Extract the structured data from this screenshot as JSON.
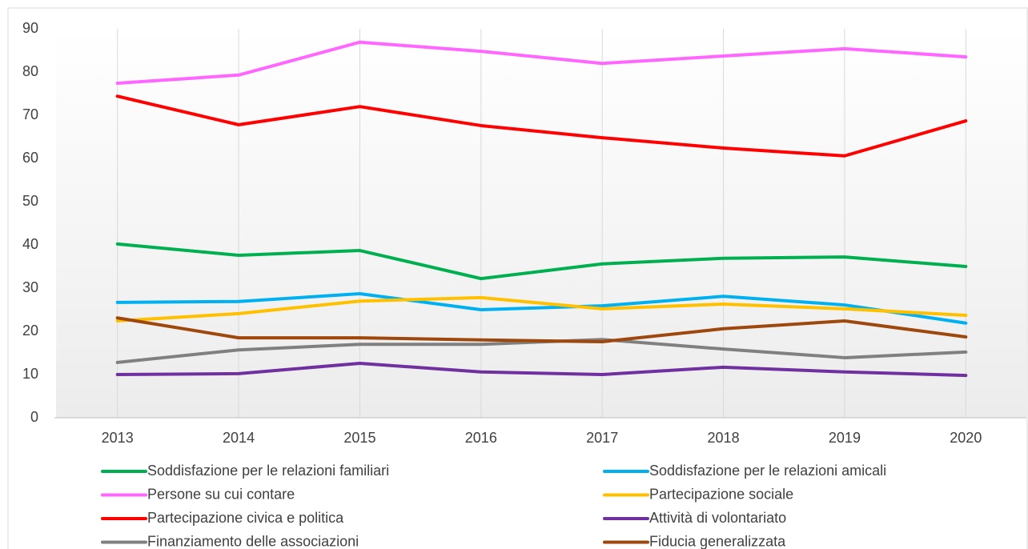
{
  "chart_data": {
    "type": "line",
    "categories": [
      "2013",
      "2014",
      "2015",
      "2016",
      "2017",
      "2018",
      "2019",
      "2020"
    ],
    "series": [
      {
        "name": "Soddisfazione per le relazioni familiari",
        "color": "#00b050",
        "values": [
          40.2,
          37.6,
          38.7,
          32.2,
          35.6,
          36.9,
          37.2,
          35.0
        ]
      },
      {
        "name": "Soddisfazione per le relazioni amicali",
        "color": "#00b0f0",
        "values": [
          26.7,
          26.9,
          28.7,
          25.0,
          25.9,
          28.1,
          26.1,
          21.9
        ]
      },
      {
        "name": "Persone su cui contare",
        "color": "#ff66ff",
        "values": [
          77.4,
          79.3,
          86.9,
          84.8,
          82.0,
          83.7,
          85.4,
          83.5
        ]
      },
      {
        "name": "Partecipazione sociale",
        "color": "#ffc000",
        "values": [
          22.4,
          24.1,
          27.0,
          27.8,
          25.2,
          26.3,
          25.2,
          23.7
        ]
      },
      {
        "name": "Partecipazione civica e politica",
        "color": "#ff0000",
        "values": [
          74.4,
          67.8,
          72.0,
          67.6,
          64.8,
          62.4,
          60.6,
          68.7
        ]
      },
      {
        "name": "Attività di volontariato",
        "color": "#7030a0",
        "values": [
          10.0,
          10.2,
          12.6,
          10.6,
          10.0,
          11.7,
          10.6,
          9.8
        ]
      },
      {
        "name": "Finanziamento delle associazioni",
        "color": "#808080",
        "values": [
          12.8,
          15.7,
          17.0,
          17.0,
          18.1,
          15.9,
          13.9,
          15.2
        ]
      },
      {
        "name": "Fiducia generalizzata",
        "color": "#9e480e",
        "values": [
          23.1,
          18.5,
          18.5,
          18.0,
          17.6,
          20.6,
          22.4,
          18.7
        ]
      }
    ],
    "ylim": [
      0,
      90
    ],
    "yticks": [
      0,
      10,
      20,
      30,
      40,
      50,
      60,
      70,
      80,
      90
    ],
    "grid": "x",
    "legend": "bottom"
  }
}
